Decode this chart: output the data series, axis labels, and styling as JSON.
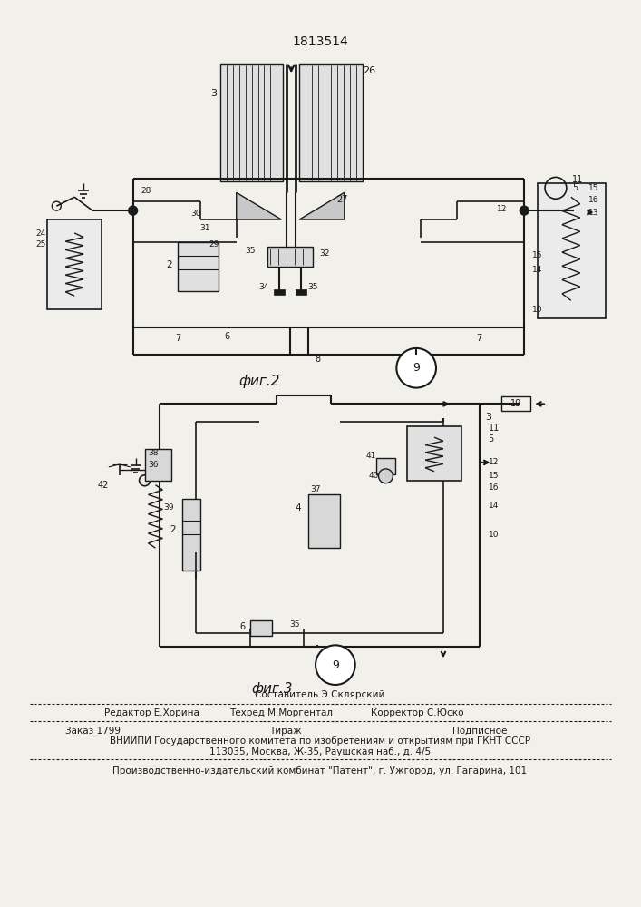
{
  "patent_number": "1813514",
  "fig2_label": "фиг.2",
  "fig3_label": "фиг.3",
  "footer_line0_center": "Составитель Э.Склярский",
  "footer_line1_left": "Редактор Е.Хорина",
  "footer_line1_center": "Техред М.Моргентал",
  "footer_line1_right": "Корректор С.Юско",
  "footer_line2_left": "Заказ 1799",
  "footer_line2_center": "Тираж",
  "footer_line2_right": "Подписное",
  "footer_line3": "ВНИИПИ Государственного комитета по изобретениям и открытиям при ГКНТ СССР",
  "footer_line4": "113035, Москва, Ж-35, Раушская наб., д. 4/5",
  "footer_line5": "Производственно-издательский комбинат \"Патент\", г. Ужгород, ул. Гагарина, 101",
  "bg_color": "#f2f0eb",
  "line_color": "#1a1a1a",
  "text_color": "#1a1a1a"
}
